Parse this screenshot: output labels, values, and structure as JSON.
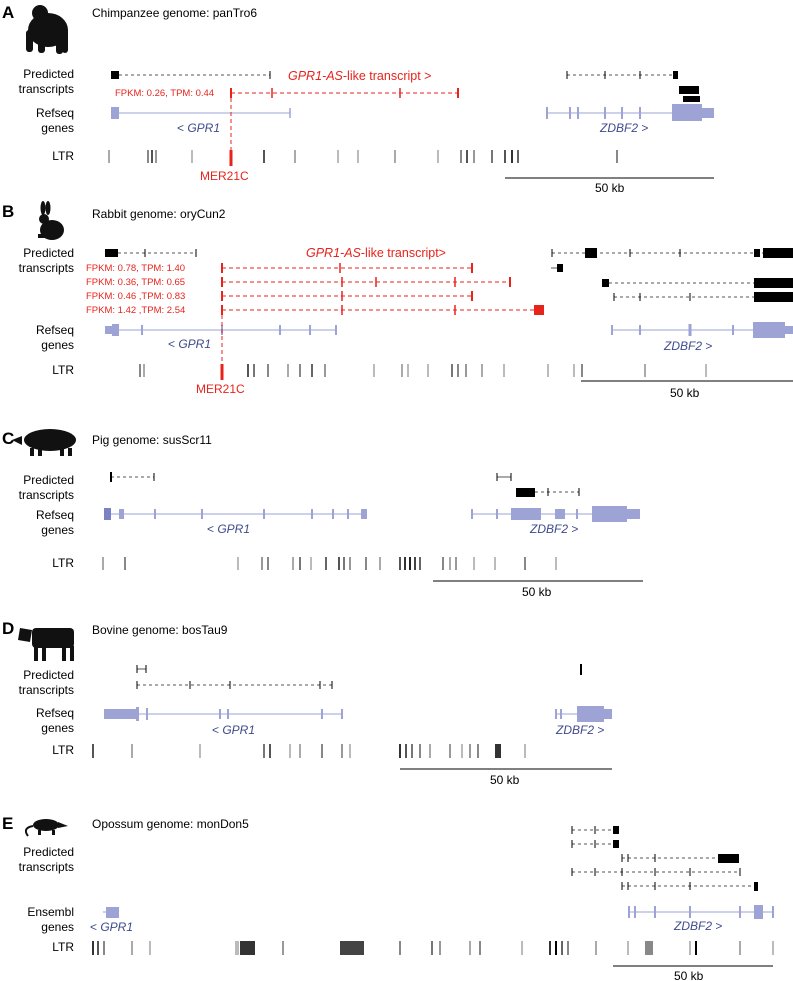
{
  "colors": {
    "red": "#e8231c",
    "blue": "#9da3d4",
    "blue_text": "#3e4a8c",
    "black": "#000000",
    "grey": "#777777"
  },
  "icons": [
    "chimpanzee-silhouette-icon",
    "rabbit-silhouette-icon",
    "pig-silhouette-icon",
    "cow-silhouette-icon",
    "opossum-silhouette-icon"
  ],
  "panels": {
    "A": {
      "letter": "A",
      "title": "Chimpanzee genome: panTro6",
      "row_predicted": [
        "Predicted",
        "transcripts"
      ],
      "row_refseq": [
        "Refseq",
        "genes"
      ],
      "row_ltr": "LTR",
      "red_title_italic": "GPR1-AS",
      "red_title_rest": "-like transcript >",
      "fpkm": [
        "FPKM: 0.26, TPM: 0.44"
      ],
      "gene_left_italic": "GPR1",
      "gene_left_prefix": "< ",
      "gene_right_italic": "ZDBF2",
      "gene_right_suffix": " >",
      "mer": "MER21C",
      "scale": "50 kb"
    },
    "B": {
      "letter": "B",
      "title": "Rabbit genome: oryCun2",
      "row_predicted": [
        "Predicted",
        "transcripts"
      ],
      "row_refseq": [
        "Refseq",
        "genes"
      ],
      "row_ltr": "LTR",
      "red_title_italic": "GPR1-AS",
      "red_title_rest": "-like transcript>",
      "fpkm": [
        "FPKM: 0.78, TPM: 1.40",
        "FPKM: 0.36, TPM: 0.65",
        "FPKM: 0.46 ,TPM: 0.83",
        "FPKM: 1.42 ,TPM: 2.54"
      ],
      "gene_left_italic": "GPR1",
      "gene_left_prefix": "< ",
      "gene_right_italic": "ZDBF2",
      "gene_right_suffix": " >",
      "mer": "MER21C",
      "scale": "50 kb"
    },
    "C": {
      "letter": "C",
      "title": "Pig genome: susScr11",
      "row_predicted": [
        "Predicted",
        "transcripts"
      ],
      "row_refseq": [
        "Refseq",
        "genes"
      ],
      "row_ltr": "LTR",
      "gene_left_italic": "GPR1",
      "gene_left_prefix": "< ",
      "gene_right_italic": "ZDBF2",
      "gene_right_suffix": " >",
      "scale": "50 kb"
    },
    "D": {
      "letter": "D",
      "title": "Bovine genome: bosTau9",
      "row_predicted": [
        "Predicted",
        "transcripts"
      ],
      "row_refseq": [
        "Refseq",
        "genes"
      ],
      "row_ltr": "LTR",
      "gene_left_italic": "GPR1",
      "gene_left_prefix": "< ",
      "gene_right_italic": "ZDBF2",
      "gene_right_suffix": " >",
      "scale": "50 kb"
    },
    "E": {
      "letter": "E",
      "title": "Opossum genome: monDon5",
      "row_predicted": [
        "Predicted",
        "transcripts"
      ],
      "row_refseq": [
        "Ensembl",
        "genes"
      ],
      "row_ltr": "LTR",
      "gene_left_italic": "GPR1",
      "gene_left_prefix": "< ",
      "gene_right_italic": "ZDBF2",
      "gene_right_suffix": " >",
      "scale": "50 kb"
    }
  }
}
